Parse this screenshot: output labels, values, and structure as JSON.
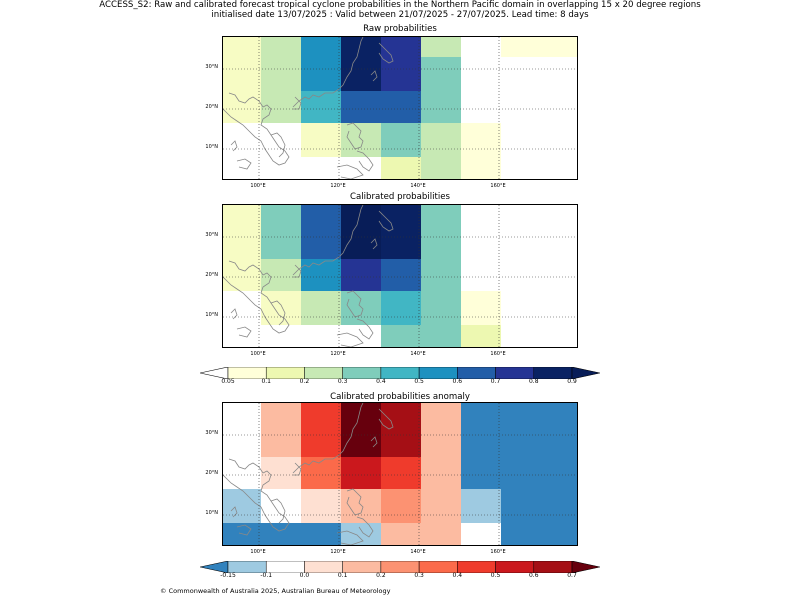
{
  "header": {
    "title_line1": "ACCESS_S2: Raw and calibrated forecast tropical cyclone probabilities in the Northern Pacific domain in overlapping 15 x 20 degree regions",
    "title_line2": "initialised date 13/07/2025 :  Valid between 21/07/2025 - 27/07/2025. Lead time: 8 days"
  },
  "axes": {
    "x_ticks": [
      "100°E",
      "120°E",
      "140°E",
      "160°E"
    ],
    "y_ticks": [
      "30°N",
      "20°N",
      "10°N"
    ],
    "coast_color": "#888888"
  },
  "panels": [
    {
      "title": "Raw probabilities",
      "scale": "prob",
      "grid": [
        [
          "#f7fcc4",
          "#c7e9b4",
          "#1d91c0",
          "#0a2263",
          "#253494",
          "#c7e9b4",
          "#ffffff",
          "#ffffd9"
        ],
        [
          "#f7fcc4",
          "#c7e9b4",
          "#1d91c0",
          "#0a2263",
          "#253494",
          "#7fcdbb",
          "#ffffff",
          "#ffffff"
        ],
        [
          "#f7fcc4",
          "#c7e9b4",
          "#41b6c4",
          "#225ea8",
          "#225ea8",
          "#7fcdbb",
          "#ffffff",
          "#ffffff"
        ],
        [
          "#ffffff",
          "#ffffff",
          "#f7fcc4",
          "#c7e9b4",
          "#7fcdbb",
          "#c7e9b4",
          "#ffffd9",
          "#ffffff"
        ],
        [
          "#ffffff",
          "#ffffff",
          "#ffffff",
          "#ffffff",
          "#edf8b1",
          "#c7e9b4",
          "#ffffd9",
          "#ffffff"
        ]
      ]
    },
    {
      "title": "Calibrated probabilities",
      "scale": "prob",
      "grid": [
        [
          "#f7fcc4",
          "#7fcdbb",
          "#225ea8",
          "#081d58",
          "#0a2263",
          "#7fcdbb",
          "#ffffff",
          "#ffffff"
        ],
        [
          "#f7fcc4",
          "#7fcdbb",
          "#225ea8",
          "#081d58",
          "#0a2263",
          "#7fcdbb",
          "#ffffff",
          "#ffffff"
        ],
        [
          "#f7fcc4",
          "#c7e9b4",
          "#1d91c0",
          "#253494",
          "#225ea8",
          "#7fcdbb",
          "#ffffff",
          "#ffffff"
        ],
        [
          "#ffffff",
          "#f7fcc4",
          "#c7e9b4",
          "#7fcdbb",
          "#41b6c4",
          "#7fcdbb",
          "#ffffd9",
          "#ffffff"
        ],
        [
          "#ffffff",
          "#ffffff",
          "#ffffff",
          "#ffffff",
          "#7fcdbb",
          "#7fcdbb",
          "#edf8b1",
          "#ffffff"
        ]
      ]
    },
    {
      "title": "Calibrated probabilities anomaly",
      "scale": "anom",
      "grid": [
        [
          "#ffffff",
          "#fcbba1",
          "#ef3b2c",
          "#67000d",
          "#a50f15",
          "#fcbba1",
          "#3182bd",
          "#3182bd"
        ],
        [
          "#ffffff",
          "#fcbba1",
          "#ef3b2c",
          "#67000d",
          "#a50f15",
          "#fcbba1",
          "#3182bd",
          "#3182bd"
        ],
        [
          "#ffffff",
          "#fee0d2",
          "#fb6a4a",
          "#cb181d",
          "#ef3b2c",
          "#fcbba1",
          "#3182bd",
          "#3182bd"
        ],
        [
          "#9ecae1",
          "#ffffff",
          "#fee0d2",
          "#fcbba1",
          "#fc9272",
          "#fcbba1",
          "#9ecae1",
          "#3182bd"
        ],
        [
          "#3182bd",
          "#3182bd",
          "#3182bd",
          "#9ecae1",
          "#fcbba1",
          "#fcbba1",
          "#ffffff",
          "#3182bd"
        ]
      ]
    }
  ],
  "colorbar_prob": {
    "ticks": [
      "0.05",
      "0.1",
      "0.2",
      "0.3",
      "0.4",
      "0.5",
      "0.6",
      "0.7",
      "0.8",
      "0.9"
    ],
    "under_color": "#ffffff",
    "over_color": "#081d58",
    "colors": [
      "#ffffd9",
      "#edf8b1",
      "#c7e9b4",
      "#7fcdbb",
      "#41b6c4",
      "#1d91c0",
      "#225ea8",
      "#253494",
      "#0a2263"
    ]
  },
  "colorbar_anom": {
    "ticks": [
      "-0.15",
      "-0.1",
      "0.0",
      "0.1",
      "0.2",
      "0.3",
      "0.4",
      "0.5",
      "0.6",
      "0.7"
    ],
    "under_color": "#3182bd",
    "over_color": "#67000d",
    "colors": [
      "#9ecae1",
      "#ffffff",
      "#fee0d2",
      "#fcbba1",
      "#fc9272",
      "#fb6a4a",
      "#ef3b2c",
      "#cb181d",
      "#a50f15"
    ]
  },
  "footer": {
    "copyright": "© Commonwealth of Australia 2025, Australian Bureau of Meteorology"
  }
}
